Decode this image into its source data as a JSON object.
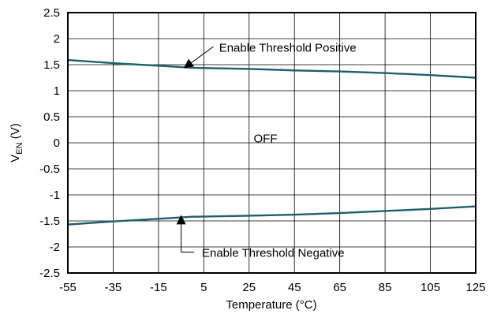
{
  "chart_data": {
    "type": "line",
    "title": "",
    "xlabel": "Temperature (°C)",
    "ylabel_main": "V",
    "ylabel_sub": "EN",
    "ylabel_unit": " (V)",
    "xlim": [
      -55,
      125
    ],
    "ylim": [
      -2.5,
      2.5
    ],
    "x_ticks": [
      -55,
      -35,
      -15,
      5,
      25,
      45,
      65,
      85,
      105,
      125
    ],
    "y_ticks": [
      2.5,
      2,
      1.5,
      1,
      0.5,
      0,
      -0.5,
      -1,
      -1.5,
      -2,
      -2.5
    ],
    "x_tick_labels": [
      "-55",
      "-35",
      "-15",
      "5",
      "25",
      "45",
      "65",
      "85",
      "105",
      "125"
    ],
    "y_tick_labels": [
      "2.5",
      "2",
      "1.5",
      "1",
      "0.5",
      "0",
      "-0.5",
      "-1",
      "-1.5",
      "-2",
      "-2.5"
    ],
    "grid": true,
    "line_color": "#1f5f6a",
    "series": [
      {
        "x": [
          -55,
          -35,
          -15,
          0,
          25,
          45,
          65,
          85,
          105,
          125
        ],
        "y": [
          1.59,
          1.53,
          1.48,
          1.44,
          1.42,
          1.39,
          1.37,
          1.34,
          1.3,
          1.25
        ]
      },
      {
        "x": [
          -55,
          -35,
          -15,
          0,
          25,
          45,
          65,
          85,
          105,
          125
        ],
        "y": [
          -1.57,
          -1.51,
          -1.46,
          -1.42,
          -1.4,
          -1.38,
          -1.35,
          -1.31,
          -1.27,
          -1.22
        ]
      }
    ],
    "annotations": [
      {
        "text": "Enable Threshold Positive",
        "point": [
          -3,
          1.46
        ],
        "bend": [
          9,
          1.84
        ],
        "text_x": 10,
        "text_y": 1.84
      },
      {
        "text": "OFF",
        "text_x": 27,
        "text_y": 0.1
      },
      {
        "text": "Enable Threshold Negative",
        "point": [
          -5,
          -1.43
        ],
        "bend": [
          -5,
          -2.1
        ],
        "text_x": 0,
        "text_y": -2.1
      }
    ]
  }
}
